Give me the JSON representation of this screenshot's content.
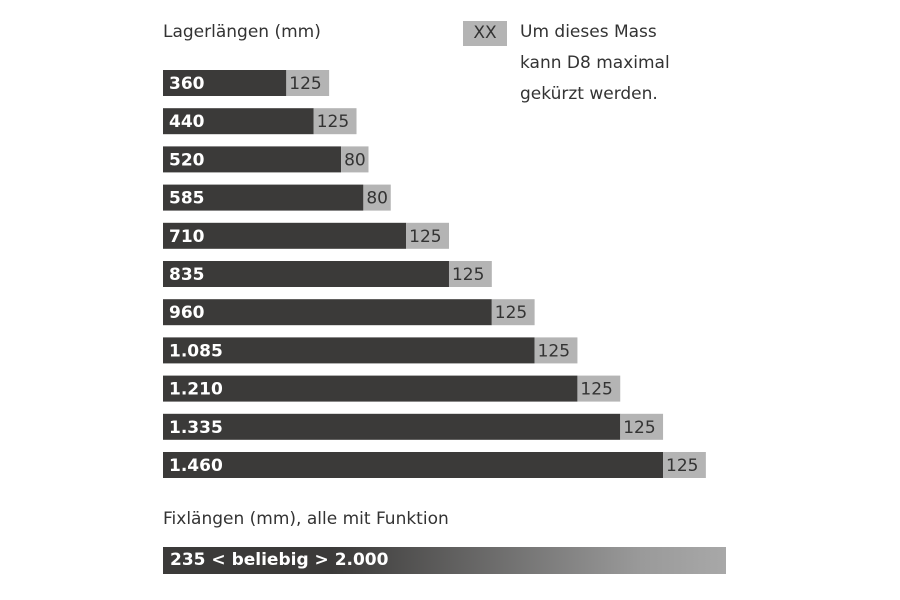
{
  "chart_data": {
    "type": "bar",
    "orientation": "horizontal",
    "stacked": true,
    "title": "Lagerlängen (mm)",
    "legend": {
      "swatch_label": "XX",
      "text": "Um dieses Mass\nkann D8 maximal\ngekürzt werden.",
      "placement": "top-right"
    },
    "categories": [
      "360",
      "440",
      "520",
      "585",
      "710",
      "835",
      "960",
      "1.085",
      "1.210",
      "1.335",
      "1.460"
    ],
    "series": [
      {
        "values": [
          360,
          440,
          520,
          585,
          710,
          835,
          960,
          1085,
          1210,
          1335,
          1460
        ]
      },
      {
        "values": [
          125,
          125,
          80,
          80,
          125,
          125,
          125,
          125,
          125,
          125,
          125
        ]
      }
    ],
    "colors": {
      "main": "#3b3a39",
      "shortening": "#b4b4b4"
    }
  },
  "fix": {
    "title": "Fixlängen (mm),  alle mit Funktion",
    "range_label": "235 < beliebig > 2.000"
  }
}
